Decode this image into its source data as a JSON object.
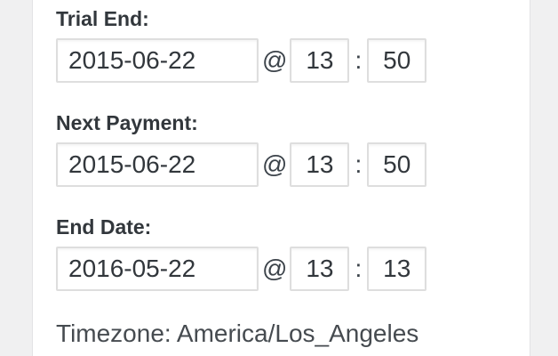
{
  "panel": {
    "separators": {
      "at": "@",
      "colon": ":"
    },
    "fields": [
      {
        "label": "Trial End:",
        "date": "2015-06-22",
        "hour": "13",
        "minute": "50"
      },
      {
        "label": "Next Payment:",
        "date": "2015-06-22",
        "hour": "13",
        "minute": "50"
      },
      {
        "label": "End Date:",
        "date": "2016-05-22",
        "hour": "13",
        "minute": "13"
      }
    ],
    "timezone_label": "Timezone: America/Los_Angeles"
  },
  "colors": {
    "page_background": "#f0f0f1",
    "panel_background": "#ffffff",
    "panel_border": "#e3e3e5",
    "input_border": "#dedede",
    "text_dark": "#32373c",
    "text_secondary": "#464b50"
  }
}
